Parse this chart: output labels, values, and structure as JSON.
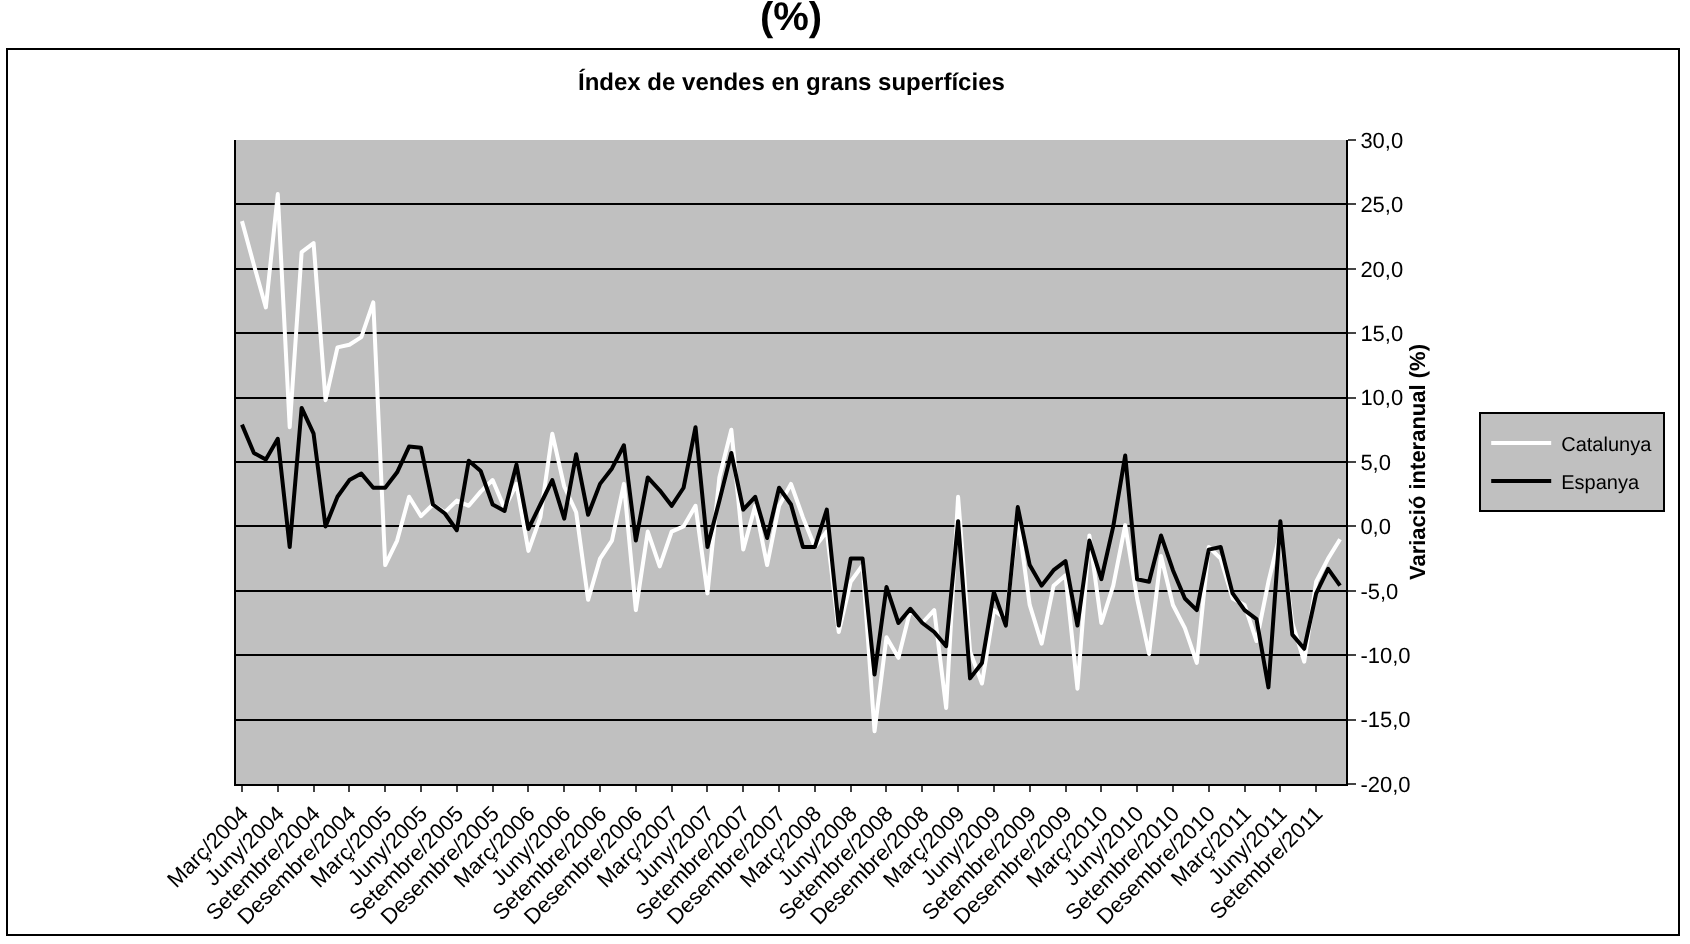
{
  "chart_data": {
    "type": "line",
    "title": "(%)",
    "subtitle": "Índex de vendes en grans superfícies",
    "ylabel": "Variació interanual (%)",
    "categories": [
      "Març/2004",
      null,
      null,
      "Juny/2004",
      null,
      null,
      "Setembre/2004",
      null,
      null,
      "Desembre/2004",
      null,
      null,
      "Març/2005",
      null,
      null,
      "Juny/2005",
      null,
      null,
      "Setembre/2005",
      null,
      null,
      "Desembre/2005",
      null,
      null,
      "Març/2006",
      null,
      null,
      "Juny/2006",
      null,
      null,
      "Setembre/2006",
      null,
      null,
      "Desembre/2006",
      null,
      null,
      "Març/2007",
      null,
      null,
      "Juny/2007",
      null,
      null,
      "Setembre/2007",
      null,
      null,
      "Desembre/2007",
      null,
      null,
      "Març/2008",
      null,
      null,
      "Juny/2008",
      null,
      null,
      "Setembre/2008",
      null,
      null,
      "Desembre/2008",
      null,
      null,
      "Març/2009",
      null,
      null,
      "Juny/2009",
      null,
      null,
      "Setembre/2009",
      null,
      null,
      "Desembre/2009",
      null,
      null,
      "Març/2010",
      null,
      null,
      "Juny/2010",
      null,
      null,
      "Setembre/2010",
      null,
      null,
      "Desembre/2010",
      null,
      null,
      "Març/2011",
      null,
      null,
      "Juny/2011",
      null,
      null,
      "Setembre/2011",
      null,
      null
    ],
    "series": [
      {
        "name": "Catalunya",
        "color": "#ffffff",
        "values": [
          23.7,
          20.3,
          17.0,
          25.8,
          7.7,
          21.3,
          22.0,
          9.8,
          13.9,
          14.1,
          14.7,
          17.4,
          -3.0,
          -1.1,
          2.3,
          0.8,
          1.7,
          1.1,
          2.0,
          1.6,
          2.7,
          3.6,
          1.4,
          3.3,
          -1.9,
          0.7,
          7.2,
          3.1,
          1.1,
          -5.7,
          -2.5,
          -1.1,
          3.3,
          -6.5,
          -0.4,
          -3.1,
          -0.4,
          0.0,
          1.6,
          -5.2,
          3.8,
          7.5,
          -1.8,
          1.6,
          -3.0,
          1.6,
          3.3,
          0.7,
          -1.6,
          -0.4,
          -8.2,
          -4.3,
          -3.0,
          -15.9,
          -8.6,
          -10.2,
          -6.5,
          -7.5,
          -6.5,
          -14.1,
          2.3,
          -9.7,
          -12.2,
          -6.5,
          -7.2,
          0.7,
          -6.1,
          -9.1,
          -4.6,
          -3.8,
          -12.6,
          -0.7,
          -7.5,
          -4.6,
          0.1,
          -5.6,
          -9.9,
          -2.3,
          -6.1,
          -7.9,
          -10.6,
          -1.6,
          -2.5,
          -5.6,
          -6.1,
          -8.9,
          -4.3,
          -0.5,
          -7.5,
          -10.5,
          -4.3,
          -2.5,
          -1.0
        ]
      },
      {
        "name": "Espanya",
        "color": "#000000",
        "values": [
          7.9,
          5.7,
          5.2,
          6.8,
          -1.6,
          9.2,
          7.2,
          0.0,
          2.3,
          3.6,
          4.1,
          3.0,
          3.0,
          4.2,
          6.2,
          6.1,
          1.7,
          1.0,
          -0.3,
          5.1,
          4.3,
          1.7,
          1.2,
          4.8,
          -0.2,
          1.7,
          3.6,
          0.6,
          5.6,
          0.9,
          3.3,
          4.5,
          6.3,
          -1.1,
          3.8,
          2.8,
          1.6,
          3.0,
          7.7,
          -1.6,
          2.0,
          5.7,
          1.3,
          2.3,
          -0.9,
          3.0,
          1.7,
          -1.6,
          -1.6,
          1.3,
          -7.7,
          -2.5,
          -2.5,
          -11.5,
          -4.7,
          -7.5,
          -6.4,
          -7.5,
          -8.2,
          -9.3,
          0.4,
          -11.8,
          -10.6,
          -5.1,
          -7.7,
          1.5,
          -3.0,
          -4.6,
          -3.4,
          -2.7,
          -7.7,
          -1.1,
          -4.1,
          0.0,
          5.5,
          -4.1,
          -4.3,
          -0.7,
          -3.4,
          -5.6,
          -6.5,
          -1.8,
          -1.6,
          -5.2,
          -6.5,
          -7.2,
          -12.5,
          0.4,
          -8.4,
          -9.5,
          -5.2,
          -3.3,
          -4.6
        ]
      }
    ],
    "ylim": [
      -20,
      30
    ],
    "yticks": [
      {
        "value": -20,
        "label": "-20,0"
      },
      {
        "value": -15,
        "label": "-15,0"
      },
      {
        "value": -10,
        "label": "-10,0"
      },
      {
        "value": -5,
        "label": "-5,0"
      },
      {
        "value": 0,
        "label": "0,0"
      },
      {
        "value": 5,
        "label": "5,0"
      },
      {
        "value": 10,
        "label": "10,0"
      },
      {
        "value": 15,
        "label": "15,0"
      },
      {
        "value": 20,
        "label": "20,0"
      },
      {
        "value": 25,
        "label": "25,0"
      },
      {
        "value": 30,
        "label": "30,0"
      }
    ],
    "grid": "y",
    "legend": "right",
    "marker": "none",
    "line_style": "solid"
  }
}
